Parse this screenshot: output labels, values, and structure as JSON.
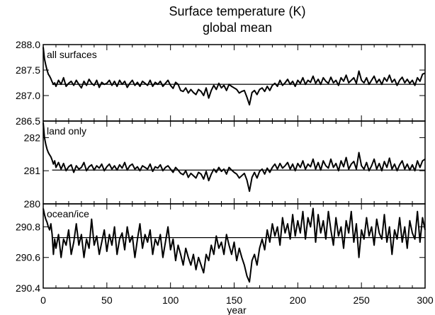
{
  "chart_data": {
    "type": "line",
    "title": "Surface temperature (K)",
    "subtitle": "global mean",
    "xlabel": "year",
    "xlim": [
      0,
      300
    ],
    "x_ticks": [
      0,
      50,
      100,
      150,
      200,
      250,
      300
    ],
    "x_tick_labels": [
      "0",
      "50",
      "100",
      "150",
      "200",
      "250",
      "300"
    ],
    "grid": false,
    "panels": [
      {
        "label": "all surfaces",
        "ylim": [
          286.5,
          288.0
        ],
        "y_ticks": [
          286.5,
          287.0,
          287.5,
          288.0
        ],
        "y_tick_labels": [
          "286.5",
          "287.0",
          "287.5",
          "288.0"
        ],
        "reference_line": {
          "y": 287.22,
          "x_start": 7,
          "x_end": 300
        },
        "series": {
          "x": [
            0,
            1,
            2,
            3,
            4,
            5,
            6,
            7,
            8,
            9,
            10,
            12,
            14,
            16,
            18,
            20,
            22,
            24,
            26,
            28,
            30,
            32,
            34,
            36,
            38,
            40,
            42,
            44,
            46,
            48,
            50,
            52,
            54,
            56,
            58,
            60,
            62,
            64,
            66,
            68,
            70,
            72,
            74,
            76,
            78,
            80,
            82,
            84,
            86,
            88,
            90,
            92,
            94,
            96,
            98,
            100,
            102,
            104,
            106,
            108,
            110,
            112,
            114,
            116,
            118,
            120,
            122,
            124,
            126,
            128,
            130,
            132,
            134,
            136,
            138,
            140,
            142,
            144,
            146,
            148,
            150,
            152,
            154,
            156,
            158,
            160,
            162,
            164,
            166,
            168,
            170,
            172,
            174,
            176,
            178,
            180,
            182,
            184,
            186,
            188,
            190,
            192,
            194,
            196,
            198,
            200,
            202,
            204,
            206,
            208,
            210,
            212,
            214,
            216,
            218,
            220,
            222,
            224,
            226,
            228,
            230,
            232,
            234,
            236,
            238,
            240,
            242,
            244,
            246,
            248,
            250,
            252,
            254,
            256,
            258,
            260,
            262,
            264,
            266,
            268,
            270,
            272,
            274,
            276,
            278,
            280,
            282,
            284,
            286,
            288,
            290,
            292,
            294,
            296,
            298,
            300
          ],
          "values": [
            287.95,
            287.72,
            287.6,
            287.5,
            287.42,
            287.38,
            287.33,
            287.27,
            287.22,
            287.25,
            287.18,
            287.3,
            287.22,
            287.35,
            287.18,
            287.24,
            287.28,
            287.2,
            287.3,
            287.22,
            287.15,
            287.28,
            287.2,
            287.32,
            287.24,
            287.2,
            287.3,
            287.16,
            287.26,
            287.22,
            287.24,
            287.3,
            287.2,
            287.28,
            287.18,
            287.3,
            287.22,
            287.28,
            287.16,
            287.24,
            287.3,
            287.2,
            287.26,
            287.18,
            287.28,
            287.24,
            287.2,
            287.3,
            287.18,
            287.26,
            287.22,
            287.28,
            287.18,
            287.24,
            287.3,
            287.2,
            287.14,
            287.26,
            287.22,
            287.1,
            287.08,
            287.15,
            287.05,
            287.12,
            287.06,
            287.02,
            287.12,
            287.08,
            287.0,
            287.15,
            286.95,
            287.1,
            287.2,
            287.12,
            287.24,
            287.15,
            287.2,
            287.1,
            287.22,
            287.18,
            287.15,
            287.12,
            287.05,
            287.08,
            287.1,
            286.97,
            286.82,
            287.06,
            287.1,
            287.02,
            287.12,
            287.15,
            287.08,
            287.18,
            287.1,
            287.2,
            287.24,
            287.18,
            287.3,
            287.2,
            287.25,
            287.32,
            287.22,
            287.28,
            287.18,
            287.3,
            287.24,
            287.35,
            287.22,
            287.3,
            287.26,
            287.38,
            287.24,
            287.32,
            287.22,
            287.35,
            287.28,
            287.24,
            287.36,
            287.25,
            287.3,
            287.2,
            287.35,
            287.28,
            287.4,
            287.25,
            287.3,
            287.35,
            287.24,
            287.48,
            287.3,
            287.25,
            287.35,
            287.22,
            287.3,
            287.38,
            287.25,
            287.32,
            287.22,
            287.35,
            287.28,
            287.4,
            287.26,
            287.32,
            287.2,
            287.3,
            287.36,
            287.25,
            287.32,
            287.24,
            287.3,
            287.2,
            287.35,
            287.28,
            287.42,
            287.44
          ]
        }
      },
      {
        "label": "land only",
        "ylim": [
          280.0,
          282.5
        ],
        "y_ticks": [
          280,
          281,
          282
        ],
        "y_tick_labels": [
          "280",
          "281",
          "282"
        ],
        "reference_line": {
          "y": 281.02,
          "x_start": 7,
          "x_end": 300
        },
        "series": {
          "x": [
            0,
            1,
            2,
            3,
            4,
            5,
            6,
            7,
            8,
            9,
            10,
            12,
            14,
            16,
            18,
            20,
            22,
            24,
            26,
            28,
            30,
            32,
            34,
            36,
            38,
            40,
            42,
            44,
            46,
            48,
            50,
            52,
            54,
            56,
            58,
            60,
            62,
            64,
            66,
            68,
            70,
            72,
            74,
            76,
            78,
            80,
            82,
            84,
            86,
            88,
            90,
            92,
            94,
            96,
            98,
            100,
            102,
            104,
            106,
            108,
            110,
            112,
            114,
            116,
            118,
            120,
            122,
            124,
            126,
            128,
            130,
            132,
            134,
            136,
            138,
            140,
            142,
            144,
            146,
            148,
            150,
            152,
            154,
            156,
            158,
            160,
            162,
            164,
            166,
            168,
            170,
            172,
            174,
            176,
            178,
            180,
            182,
            184,
            186,
            188,
            190,
            192,
            194,
            196,
            198,
            200,
            202,
            204,
            206,
            208,
            210,
            212,
            214,
            216,
            218,
            220,
            222,
            224,
            226,
            228,
            230,
            232,
            234,
            236,
            238,
            240,
            242,
            244,
            246,
            248,
            250,
            252,
            254,
            256,
            258,
            260,
            262,
            264,
            266,
            268,
            270,
            272,
            274,
            276,
            278,
            280,
            282,
            284,
            286,
            288,
            290,
            292,
            294,
            296,
            298,
            300
          ],
          "values": [
            282.45,
            282.0,
            281.8,
            281.65,
            281.55,
            281.48,
            281.42,
            281.32,
            281.2,
            281.3,
            281.1,
            281.25,
            281.05,
            281.22,
            281.0,
            281.12,
            281.18,
            280.95,
            281.15,
            281.05,
            281.1,
            281.25,
            281.0,
            281.12,
            281.18,
            281.02,
            281.15,
            281.08,
            281.2,
            281.0,
            281.12,
            281.2,
            281.05,
            281.15,
            281.02,
            281.18,
            281.08,
            281.25,
            281.02,
            281.15,
            281.2,
            281.05,
            281.12,
            281.0,
            281.15,
            281.1,
            281.05,
            281.2,
            280.98,
            281.12,
            281.08,
            281.18,
            281.0,
            281.1,
            281.15,
            281.05,
            280.95,
            281.1,
            281.02,
            280.92,
            280.88,
            281.0,
            280.8,
            280.92,
            280.85,
            280.78,
            280.95,
            280.9,
            280.75,
            280.98,
            280.7,
            280.9,
            281.05,
            280.95,
            281.1,
            280.98,
            281.05,
            280.9,
            281.1,
            281.02,
            280.95,
            280.9,
            280.78,
            280.85,
            280.92,
            280.72,
            280.38,
            280.8,
            280.95,
            280.78,
            280.98,
            281.05,
            280.9,
            281.08,
            280.95,
            281.1,
            281.2,
            281.05,
            281.22,
            281.08,
            281.15,
            281.25,
            281.05,
            281.2,
            281.0,
            281.22,
            281.1,
            281.3,
            281.05,
            281.2,
            281.12,
            281.35,
            281.05,
            281.25,
            281.02,
            281.3,
            281.15,
            281.08,
            281.35,
            281.1,
            281.22,
            281.0,
            281.3,
            281.12,
            281.4,
            281.05,
            281.2,
            281.28,
            281.05,
            281.55,
            281.15,
            281.05,
            281.25,
            281.0,
            281.15,
            281.35,
            281.05,
            281.22,
            281.0,
            281.28,
            281.1,
            281.38,
            281.05,
            281.2,
            281.0,
            281.18,
            281.3,
            281.05,
            281.2,
            281.02,
            281.18,
            281.0,
            281.3,
            281.1,
            281.3,
            281.35
          ]
        }
      },
      {
        "label": "ocean/ice",
        "ylim": [
          290.4,
          290.95
        ],
        "y_ticks": [
          290.4,
          290.6,
          290.8
        ],
        "y_tick_labels": [
          "290.4",
          "290.6",
          "290.8"
        ],
        "reference_line": {
          "y": 290.73,
          "x_start": 7,
          "x_end": 300
        },
        "series": {
          "x": [
            0,
            1,
            2,
            3,
            4,
            5,
            6,
            7,
            8,
            9,
            10,
            12,
            14,
            16,
            18,
            20,
            22,
            24,
            26,
            28,
            30,
            32,
            34,
            36,
            38,
            40,
            42,
            44,
            46,
            48,
            50,
            52,
            54,
            56,
            58,
            60,
            62,
            64,
            66,
            68,
            70,
            72,
            74,
            76,
            78,
            80,
            82,
            84,
            86,
            88,
            90,
            92,
            94,
            96,
            98,
            100,
            102,
            104,
            106,
            108,
            110,
            112,
            114,
            116,
            118,
            120,
            122,
            124,
            126,
            128,
            130,
            132,
            134,
            136,
            138,
            140,
            142,
            144,
            146,
            148,
            150,
            152,
            154,
            156,
            158,
            160,
            162,
            164,
            166,
            168,
            170,
            172,
            174,
            176,
            178,
            180,
            182,
            184,
            186,
            188,
            190,
            192,
            194,
            196,
            198,
            200,
            202,
            204,
            206,
            208,
            210,
            212,
            214,
            216,
            218,
            220,
            222,
            224,
            226,
            228,
            230,
            232,
            234,
            236,
            238,
            240,
            242,
            244,
            246,
            248,
            250,
            252,
            254,
            256,
            258,
            260,
            262,
            264,
            266,
            268,
            270,
            272,
            274,
            276,
            278,
            280,
            282,
            284,
            286,
            288,
            290,
            292,
            294,
            296,
            298,
            300
          ],
          "values": [
            290.92,
            290.88,
            290.85,
            290.83,
            290.8,
            290.78,
            290.82,
            290.75,
            290.62,
            290.72,
            290.66,
            290.75,
            290.6,
            290.72,
            290.68,
            290.78,
            290.62,
            290.7,
            290.82,
            290.68,
            290.75,
            290.6,
            290.72,
            290.66,
            290.85,
            290.68,
            290.74,
            290.62,
            290.7,
            290.78,
            290.64,
            290.75,
            290.68,
            290.8,
            290.62,
            290.72,
            290.76,
            290.65,
            290.8,
            290.7,
            290.74,
            290.6,
            290.72,
            290.82,
            290.66,
            290.75,
            290.7,
            290.78,
            290.62,
            290.72,
            290.68,
            290.75,
            290.6,
            290.7,
            290.8,
            290.65,
            290.72,
            290.58,
            290.68,
            290.62,
            290.55,
            290.66,
            290.6,
            290.55,
            290.62,
            290.52,
            290.6,
            290.55,
            290.5,
            290.62,
            290.58,
            290.68,
            290.62,
            290.74,
            290.66,
            290.7,
            290.62,
            290.75,
            290.68,
            290.62,
            290.7,
            290.58,
            290.66,
            290.6,
            290.55,
            290.48,
            290.44,
            290.58,
            290.62,
            290.55,
            290.66,
            290.72,
            290.65,
            290.78,
            290.7,
            290.82,
            290.74,
            290.8,
            290.68,
            290.86,
            290.76,
            290.82,
            290.72,
            290.88,
            290.74,
            290.84,
            290.76,
            290.9,
            290.72,
            290.86,
            290.8,
            290.92,
            290.7,
            290.88,
            290.76,
            290.84,
            290.72,
            290.9,
            290.78,
            290.68,
            290.86,
            290.74,
            290.8,
            290.66,
            290.84,
            290.76,
            290.9,
            290.7,
            290.82,
            290.6,
            290.78,
            290.72,
            290.86,
            290.74,
            290.8,
            290.68,
            290.85,
            290.76,
            290.72,
            290.88,
            290.7,
            290.8,
            290.62,
            290.78,
            290.72,
            290.86,
            290.7,
            290.8,
            290.66,
            290.84,
            290.76,
            290.72,
            290.9,
            290.7,
            290.86,
            290.78
          ]
        }
      }
    ]
  }
}
